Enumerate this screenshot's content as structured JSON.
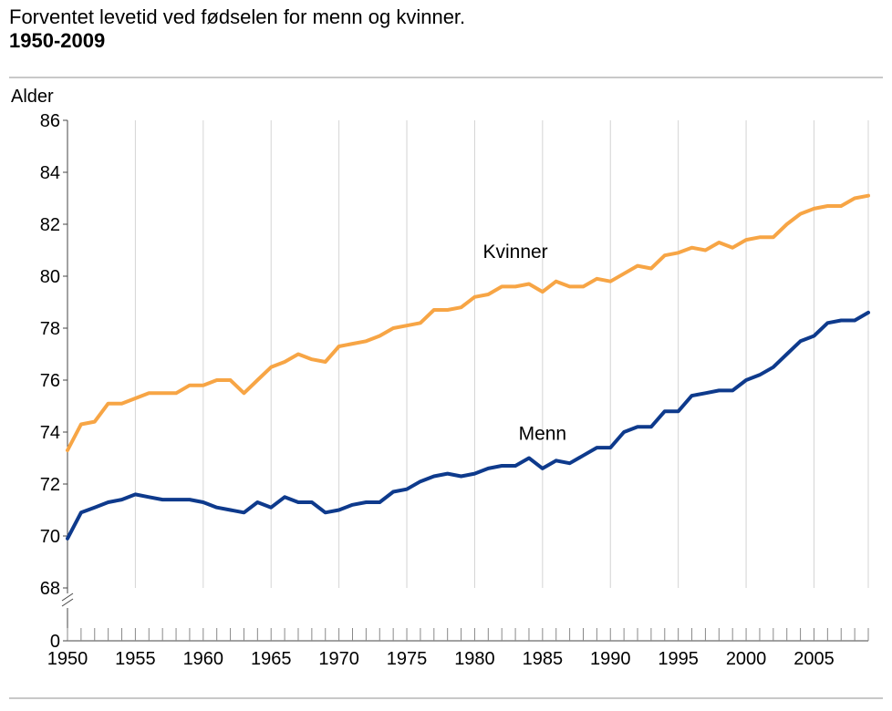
{
  "title": {
    "line1": "Forventet levetid ved fødselen for menn og kvinner.",
    "line2": "1950-2009"
  },
  "chart_data": {
    "type": "line",
    "title": "Forventet levetid ved fødselen for menn og kvinner. 1950-2009",
    "xlabel": "",
    "ylabel": "Alder",
    "xlim": [
      1950,
      2009
    ],
    "ylim": [
      68,
      86
    ],
    "y_axis_break": true,
    "y_ticks": [
      "0",
      "68",
      "70",
      "72",
      "74",
      "76",
      "78",
      "80",
      "82",
      "84",
      "86"
    ],
    "x_ticks": [
      "1950",
      "1955",
      "1960",
      "1965",
      "1970",
      "1975",
      "1980",
      "1985",
      "1990",
      "1995",
      "2000",
      "2005"
    ],
    "grid": "vertical",
    "x": [
      1950,
      1951,
      1952,
      1953,
      1954,
      1955,
      1956,
      1957,
      1958,
      1959,
      1960,
      1961,
      1962,
      1963,
      1964,
      1965,
      1966,
      1967,
      1968,
      1969,
      1970,
      1971,
      1972,
      1973,
      1974,
      1975,
      1976,
      1977,
      1978,
      1979,
      1980,
      1981,
      1982,
      1983,
      1984,
      1985,
      1986,
      1987,
      1988,
      1989,
      1990,
      1991,
      1992,
      1993,
      1994,
      1995,
      1996,
      1997,
      1998,
      1999,
      2000,
      2001,
      2002,
      2003,
      2004,
      2005,
      2006,
      2007,
      2008,
      2009
    ],
    "series": [
      {
        "name": "Kvinner",
        "color": "#f7a545",
        "values": [
          73.3,
          74.3,
          74.4,
          75.1,
          75.1,
          75.3,
          75.5,
          75.5,
          75.5,
          75.8,
          75.8,
          76.0,
          76.0,
          75.5,
          76.0,
          76.5,
          76.7,
          77.0,
          76.8,
          76.7,
          77.3,
          77.4,
          77.5,
          77.7,
          78.0,
          78.1,
          78.2,
          78.7,
          78.7,
          78.8,
          79.2,
          79.3,
          79.6,
          79.6,
          79.7,
          79.4,
          79.8,
          79.6,
          79.6,
          79.9,
          79.8,
          80.1,
          80.4,
          80.3,
          80.8,
          80.9,
          81.1,
          81.0,
          81.3,
          81.1,
          81.4,
          81.5,
          81.5,
          82.0,
          82.4,
          82.6,
          82.7,
          82.7,
          83.0,
          83.1
        ]
      },
      {
        "name": "Menn",
        "color": "#0e3a8c",
        "values": [
          69.9,
          70.9,
          71.1,
          71.3,
          71.4,
          71.6,
          71.5,
          71.4,
          71.4,
          71.4,
          71.3,
          71.1,
          71.0,
          70.9,
          71.3,
          71.1,
          71.5,
          71.3,
          71.3,
          70.9,
          71.0,
          71.2,
          71.3,
          71.3,
          71.7,
          71.8,
          72.1,
          72.3,
          72.4,
          72.3,
          72.4,
          72.6,
          72.7,
          72.7,
          73.0,
          72.6,
          72.9,
          72.8,
          73.1,
          73.4,
          73.4,
          74.0,
          74.2,
          74.2,
          74.8,
          74.8,
          75.4,
          75.5,
          75.6,
          75.6,
          76.0,
          76.2,
          76.5,
          77.0,
          77.5,
          77.7,
          78.2,
          78.3,
          78.3,
          78.6
        ]
      }
    ],
    "annotations": [
      {
        "text": "Kvinner",
        "x": 1983,
        "y": 80.7
      },
      {
        "text": "Menn",
        "x": 1985,
        "y": 73.7
      }
    ]
  }
}
